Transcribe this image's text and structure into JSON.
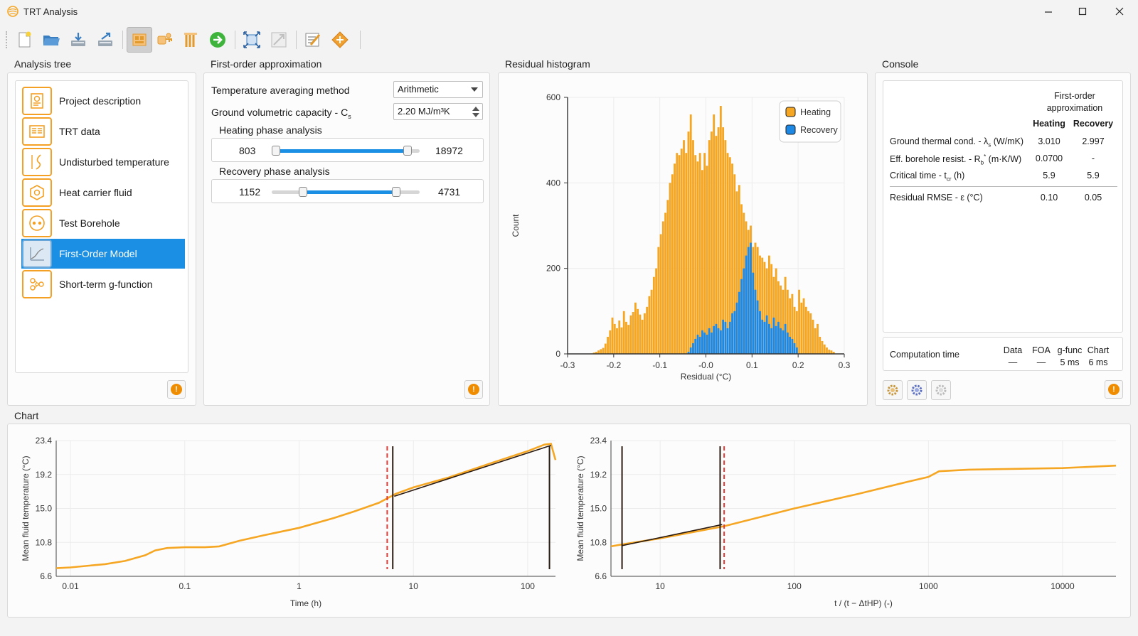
{
  "window": {
    "title": "TRT Analysis"
  },
  "toolbar": {
    "buttons": [
      "new-file-icon",
      "open-folder-icon",
      "import-icon",
      "export-icon",
      "first-order-model-icon",
      "settings-key-icon",
      "borehole-icon",
      "run-icon",
      "fit-view-icon",
      "zoom-icon",
      "report-icon",
      "diamond-tool-icon"
    ],
    "active": "first-order-model-icon"
  },
  "analysis_tree": {
    "title": "Analysis tree",
    "items": [
      {
        "label": "Project description",
        "icon": "project-description-icon"
      },
      {
        "label": "TRT data",
        "icon": "trt-data-icon"
      },
      {
        "label": "Undisturbed temperature",
        "icon": "undisturbed-temperature-icon"
      },
      {
        "label": "Heat carrier fluid",
        "icon": "heat-carrier-fluid-icon"
      },
      {
        "label": "Test Borehole",
        "icon": "test-borehole-icon"
      },
      {
        "label": "First-Order Model",
        "icon": "first-order-model-icon"
      },
      {
        "label": "Short-term g-function",
        "icon": "g-function-icon"
      }
    ],
    "selected_index": 5
  },
  "foa": {
    "title": "First-order approximation",
    "avg_label": "Temperature averaging method",
    "avg_value": "Arithmetic",
    "cap_label": "Ground volumetric capacity - C",
    "cap_sub": "s",
    "cap_value": "2.20 MJ/m³K",
    "heating": {
      "label": "Heating phase analysis",
      "min": "803",
      "max": "18972",
      "lo_frac": 0.03,
      "hi_frac": 0.92
    },
    "recovery": {
      "label": "Recovery phase analysis",
      "min": "1152",
      "max": "4731",
      "lo_frac": 0.21,
      "hi_frac": 0.84
    }
  },
  "hist": {
    "title": "Residual histogram"
  },
  "console": {
    "title": "Console",
    "header_line1": "First-order",
    "header_line2": "approximation",
    "col_heating": "Heating",
    "col_recovery": "Recovery",
    "rows": [
      {
        "pre": "Ground thermal cond. - λ",
        "sub": "s",
        "sup": "",
        "post": " (W/mK)",
        "heating": "3.010",
        "recovery": "2.997"
      },
      {
        "pre": "Eff. borehole resist. - R",
        "sub": "b",
        "sup": "*",
        "post": " (m·K/W)",
        "heating": "0.0700",
        "recovery": "-"
      },
      {
        "pre": "Critical time - t",
        "sub": "cr",
        "sup": "",
        "post": " (h)",
        "heating": "5.9",
        "recovery": "5.9"
      },
      {
        "pre": "Residual RMSE - ε (°C)",
        "sub": "",
        "sup": "",
        "post": "",
        "heating": "0.10",
        "recovery": "0.05"
      }
    ],
    "computation": {
      "label": "Computation time",
      "cols": [
        {
          "name": "Data",
          "value": "—"
        },
        {
          "name": "FOA",
          "value": "—"
        },
        {
          "name": "g-func",
          "value": "5 ms"
        },
        {
          "name": "Chart",
          "value": "6 ms"
        }
      ]
    }
  },
  "chart_section": {
    "title": "Chart"
  },
  "chart_data": [
    {
      "type": "bar",
      "title": "",
      "xlabel": "Residual (°C)",
      "ylabel": "Count",
      "xlim": [
        -0.3,
        0.3
      ],
      "ylim": [
        0,
        600
      ],
      "xticks": [
        "-0.3",
        "-0.2",
        "-0.1",
        "-0.0",
        "0.1",
        "0.2",
        "0.3"
      ],
      "yticks": [
        "0",
        "200",
        "400",
        "600"
      ],
      "legend": "top-right",
      "bin_start": -0.25,
      "bin_width": 0.005,
      "series": [
        {
          "name": "Heating",
          "color": "#f5a623",
          "values": [
            1,
            3,
            5,
            8,
            11,
            14,
            24,
            40,
            55,
            85,
            70,
            60,
            78,
            62,
            100,
            75,
            68,
            90,
            98,
            120,
            105,
            92,
            80,
            95,
            110,
            135,
            150,
            180,
            200,
            250,
            280,
            310,
            330,
            360,
            400,
            420,
            445,
            470,
            465,
            480,
            500,
            470,
            520,
            560,
            500,
            465,
            450,
            470,
            430,
            470,
            440,
            500,
            520,
            560,
            510,
            530,
            580,
            530,
            500,
            470,
            460,
            445,
            420,
            380,
            395,
            350,
            330,
            310,
            290,
            300,
            250,
            260,
            250,
            230,
            225,
            215,
            200,
            230,
            210,
            180,
            200,
            170,
            160,
            150,
            180,
            150,
            130,
            140,
            110,
            100,
            150,
            120,
            130,
            110,
            100,
            95,
            80,
            60,
            70,
            40,
            30,
            22,
            15,
            10,
            8,
            5
          ]
        },
        {
          "name": "Recovery",
          "color": "#1e88e5",
          "values": [
            0,
            0,
            0,
            0,
            0,
            0,
            0,
            0,
            0,
            0,
            0,
            0,
            0,
            0,
            0,
            0,
            0,
            0,
            0,
            0,
            0,
            0,
            0,
            0,
            0,
            0,
            0,
            0,
            0,
            0,
            0,
            0,
            0,
            0,
            0,
            0,
            0,
            0,
            0,
            0,
            0,
            0,
            5,
            15,
            25,
            35,
            45,
            40,
            55,
            50,
            45,
            60,
            50,
            65,
            70,
            60,
            55,
            80,
            75,
            60,
            75,
            95,
            100,
            120,
            145,
            175,
            200,
            230,
            250,
            260,
            190,
            150,
            125,
            100,
            80,
            75,
            90,
            70,
            60,
            85,
            65,
            75,
            60,
            55,
            70,
            50,
            40,
            35,
            25,
            15,
            0,
            0,
            0,
            0,
            0,
            0,
            0,
            0,
            0,
            0,
            0,
            0,
            0,
            0,
            0,
            0
          ]
        }
      ]
    },
    {
      "type": "line",
      "xscale": "log",
      "xlabel": "Time (h)",
      "ylabel": "Mean fluid temperature (°C)",
      "xlim": [
        0.0075,
        175
      ],
      "ylim": [
        6.6,
        23.4
      ],
      "xticks": [
        "0.01",
        "0.1",
        "1",
        "10",
        "100"
      ],
      "yticks": [
        "6.6",
        "10.8",
        "15.0",
        "19.2",
        "23.4"
      ],
      "series": [
        {
          "name": "measured",
          "color": "#f5a623",
          "points": [
            [
              0.0075,
              7.6
            ],
            [
              0.01,
              7.7
            ],
            [
              0.02,
              8.1
            ],
            [
              0.03,
              8.5
            ],
            [
              0.045,
              9.2
            ],
            [
              0.055,
              9.8
            ],
            [
              0.07,
              10.1
            ],
            [
              0.1,
              10.2
            ],
            [
              0.15,
              10.2
            ],
            [
              0.2,
              10.3
            ],
            [
              0.3,
              11.0
            ],
            [
              0.5,
              11.7
            ],
            [
              1.0,
              12.6
            ],
            [
              2.0,
              13.8
            ],
            [
              3.0,
              14.6
            ],
            [
              5.0,
              15.7
            ],
            [
              7.0,
              16.8
            ],
            [
              10,
              17.6
            ],
            [
              20,
              18.8
            ],
            [
              50,
              20.7
            ],
            [
              100,
              22.1
            ],
            [
              140,
              22.9
            ],
            [
              160,
              23.0
            ],
            [
              175,
              21.0
            ]
          ]
        },
        {
          "name": "fit",
          "color": "#2a1a10",
          "points": [
            [
              6.8,
              16.5
            ],
            [
              160,
              22.8
            ]
          ]
        }
      ],
      "markers": [
        {
          "x": 5.9,
          "style": "dashed",
          "color": "#e53935"
        },
        {
          "x": 6.6,
          "style": "solid",
          "color": "#2a1a10"
        },
        {
          "x": 155,
          "style": "solid",
          "color": "#2a1a10"
        }
      ]
    },
    {
      "type": "line",
      "xscale": "log",
      "xlabel": "t / (t − ΔtHP) (-)",
      "ylabel": "Mean fluid temperature (°C)",
      "xlim": [
        4.3,
        25000
      ],
      "ylim": [
        6.6,
        23.4
      ],
      "xticks": [
        "10",
        "100",
        "1000",
        "10000"
      ],
      "yticks": [
        "6.6",
        "10.8",
        "15.0",
        "19.2",
        "23.4"
      ],
      "series": [
        {
          "name": "measured",
          "color": "#f5a623",
          "points": [
            [
              4.3,
              10.3
            ],
            [
              5,
              10.5
            ],
            [
              10,
              11.3
            ],
            [
              30,
              12.8
            ],
            [
              100,
              15.0
            ],
            [
              300,
              16.8
            ],
            [
              700,
              18.3
            ],
            [
              1000,
              18.9
            ],
            [
              1200,
              19.6
            ],
            [
              2000,
              19.8
            ],
            [
              10000,
              20.0
            ],
            [
              25000,
              20.3
            ]
          ]
        },
        {
          "name": "fit",
          "color": "#2a1a10",
          "points": [
            [
              5.2,
              10.4
            ],
            [
              29,
              13.0
            ]
          ]
        }
      ],
      "markers": [
        {
          "x": 5.2,
          "style": "solid",
          "color": "#2a1a10"
        },
        {
          "x": 28,
          "style": "solid",
          "color": "#2a1a10"
        },
        {
          "x": 30,
          "style": "dashed",
          "color": "#e53935"
        }
      ]
    }
  ]
}
